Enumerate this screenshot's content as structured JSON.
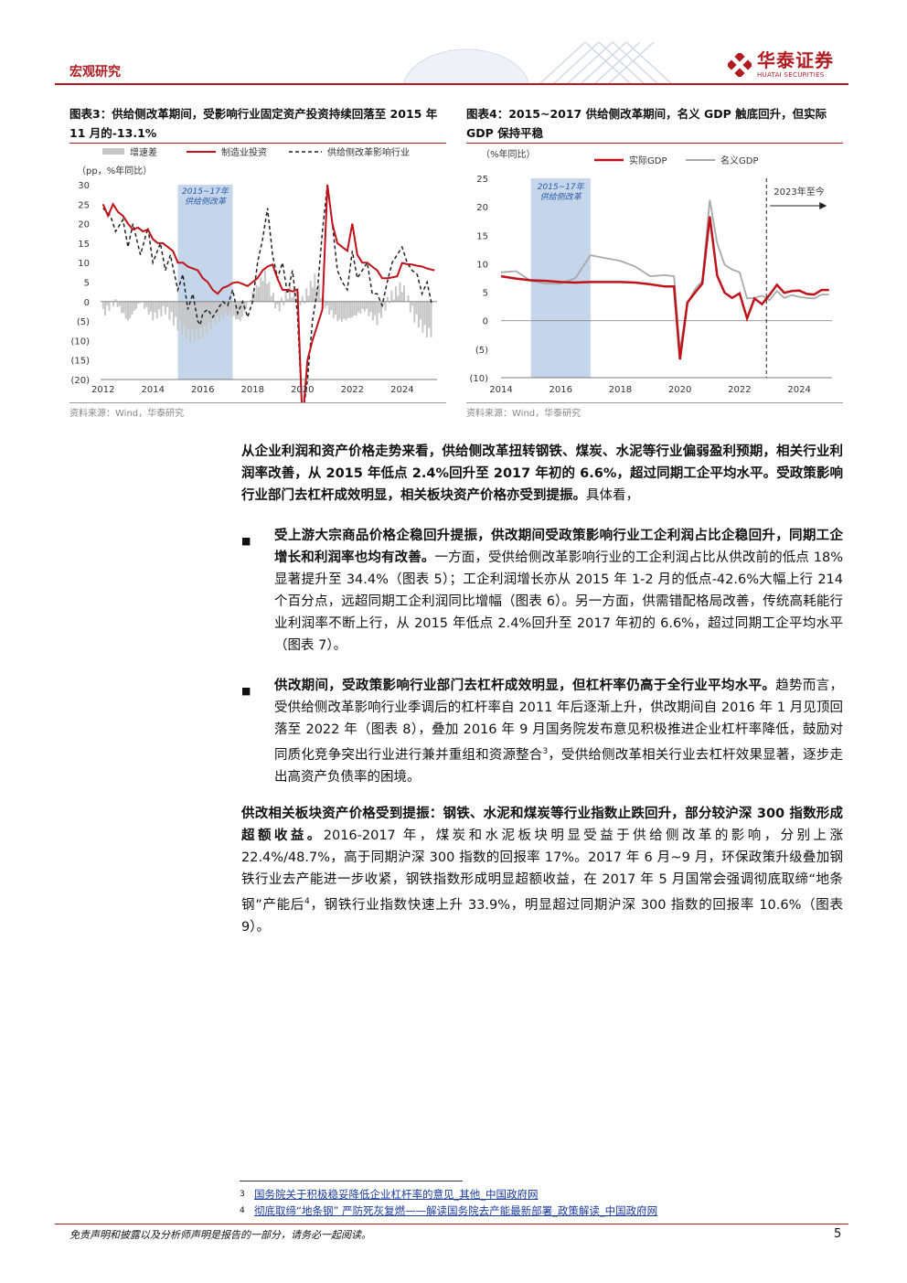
{
  "header": {
    "section": "宏观研究",
    "brand_cn": "华泰证券",
    "brand_en": "HUATAI SECURITIES"
  },
  "fig3": {
    "title": "图表3：供给侧改革期间，受影响行业固定资产投资持续回落至 2015 年 11 月的-13.1%",
    "source": "资料来源：Wind，华泰研究",
    "chart_data": {
      "type": "line",
      "unit": "（pp，%年同比）",
      "legend": [
        "增速差",
        "制造业投资",
        "供给侧改革影响行业"
      ],
      "band_label": [
        "2015~17年",
        "供给侧改革"
      ],
      "ylim": [
        -20,
        30
      ],
      "yticks": [
        "30",
        "25",
        "20",
        "15",
        "10",
        "5",
        "0",
        "(5)",
        "(10)",
        "(15)",
        "(20)"
      ],
      "xticks": [
        "2012",
        "2014",
        "2016",
        "2018",
        "2020",
        "2022",
        "2024"
      ],
      "band": [
        2015.0,
        2017.2
      ],
      "manufacturing": [
        [
          2012.0,
          25
        ],
        [
          2012.2,
          22
        ],
        [
          2012.4,
          25
        ],
        [
          2012.6,
          23
        ],
        [
          2012.8,
          22
        ],
        [
          2013.0,
          20
        ],
        [
          2013.2,
          18.5
        ],
        [
          2013.4,
          19
        ],
        [
          2013.6,
          18
        ],
        [
          2013.8,
          18.5
        ],
        [
          2014.0,
          16
        ],
        [
          2014.2,
          15
        ],
        [
          2014.4,
          15
        ],
        [
          2014.6,
          14
        ],
        [
          2014.8,
          13
        ],
        [
          2015.0,
          10
        ],
        [
          2015.2,
          10
        ],
        [
          2015.4,
          9
        ],
        [
          2015.6,
          8.5
        ],
        [
          2015.8,
          8
        ],
        [
          2016.0,
          6
        ],
        [
          2016.2,
          5
        ],
        [
          2016.4,
          3
        ],
        [
          2016.6,
          2
        ],
        [
          2016.8,
          3.5
        ],
        [
          2017.0,
          4
        ],
        [
          2017.2,
          4.8
        ],
        [
          2017.4,
          5
        ],
        [
          2017.6,
          4.5
        ],
        [
          2017.8,
          4
        ],
        [
          2018.0,
          5
        ],
        [
          2018.2,
          6
        ],
        [
          2018.4,
          8
        ],
        [
          2018.6,
          9
        ],
        [
          2018.8,
          9.5
        ],
        [
          2019.0,
          5.9
        ],
        [
          2019.2,
          3
        ],
        [
          2019.4,
          3
        ],
        [
          2019.6,
          2.6
        ],
        [
          2019.8,
          3.1
        ],
        [
          2020.0,
          -31
        ],
        [
          2020.2,
          -15
        ],
        [
          2020.4,
          -10
        ],
        [
          2020.6,
          -6
        ],
        [
          2020.8,
          -2
        ],
        [
          2021.0,
          30
        ],
        [
          2021.2,
          20
        ],
        [
          2021.4,
          15
        ],
        [
          2021.6,
          14
        ],
        [
          2021.8,
          13
        ],
        [
          2022.0,
          20
        ],
        [
          2022.2,
          12
        ],
        [
          2022.4,
          10
        ],
        [
          2022.6,
          10
        ],
        [
          2022.8,
          9
        ],
        [
          2023.0,
          8
        ],
        [
          2023.2,
          6
        ],
        [
          2023.4,
          6
        ],
        [
          2023.6,
          6.2
        ],
        [
          2023.8,
          6.5
        ],
        [
          2024.0,
          9.9
        ],
        [
          2024.2,
          9.6
        ],
        [
          2024.4,
          9.5
        ],
        [
          2024.6,
          9.2
        ],
        [
          2024.8,
          9
        ],
        [
          2025.0,
          8.5
        ],
        [
          2025.3,
          8
        ]
      ],
      "supply_side": [
        [
          2012.0,
          24
        ],
        [
          2012.3,
          22
        ],
        [
          2012.5,
          18
        ],
        [
          2012.8,
          21
        ],
        [
          2013.0,
          14
        ],
        [
          2013.2,
          20
        ],
        [
          2013.5,
          12
        ],
        [
          2013.8,
          19
        ],
        [
          2014.0,
          10
        ],
        [
          2014.3,
          15
        ],
        [
          2014.5,
          8
        ],
        [
          2014.7,
          12
        ],
        [
          2015.0,
          3
        ],
        [
          2015.2,
          7
        ],
        [
          2015.4,
          -2
        ],
        [
          2015.6,
          2
        ],
        [
          2015.8,
          -5
        ],
        [
          2015.9,
          -6
        ],
        [
          2016.0,
          -3
        ],
        [
          2016.2,
          -2
        ],
        [
          2016.4,
          -4
        ],
        [
          2016.6,
          -2
        ],
        [
          2016.8,
          0
        ],
        [
          2017.0,
          -1
        ],
        [
          2017.2,
          3
        ],
        [
          2017.4,
          -3
        ],
        [
          2017.6,
          0
        ],
        [
          2017.8,
          -4
        ],
        [
          2018.0,
          0
        ],
        [
          2018.2,
          10
        ],
        [
          2018.4,
          16
        ],
        [
          2018.6,
          24
        ],
        [
          2018.8,
          12
        ],
        [
          2019.0,
          6
        ],
        [
          2019.2,
          10
        ],
        [
          2019.4,
          2
        ],
        [
          2019.6,
          8
        ],
        [
          2019.8,
          -3
        ],
        [
          2020.0,
          -30
        ],
        [
          2020.2,
          -20
        ],
        [
          2020.4,
          -5
        ],
        [
          2020.6,
          3
        ],
        [
          2020.8,
          18
        ],
        [
          2021.0,
          30
        ],
        [
          2021.2,
          20
        ],
        [
          2021.4,
          8
        ],
        [
          2021.6,
          5
        ],
        [
          2021.8,
          3
        ],
        [
          2022.0,
          13
        ],
        [
          2022.2,
          6
        ],
        [
          2022.4,
          8
        ],
        [
          2022.6,
          10
        ],
        [
          2022.8,
          2
        ],
        [
          2023.0,
          2
        ],
        [
          2023.2,
          -1
        ],
        [
          2023.4,
          5
        ],
        [
          2023.6,
          10
        ],
        [
          2023.8,
          12
        ],
        [
          2024.0,
          14
        ],
        [
          2024.2,
          10
        ],
        [
          2024.4,
          8
        ],
        [
          2024.6,
          7
        ],
        [
          2024.8,
          2
        ],
        [
          2025.0,
          5
        ],
        [
          2025.2,
          -1
        ]
      ],
      "gap": [
        [
          2012.0,
          -3
        ],
        [
          2012.5,
          0
        ],
        [
          2013.0,
          -5
        ],
        [
          2013.5,
          0
        ],
        [
          2014.0,
          -4
        ],
        [
          2014.5,
          -2
        ],
        [
          2015.0,
          -6
        ],
        [
          2015.5,
          -9
        ],
        [
          2016.0,
          -8
        ],
        [
          2016.5,
          -5
        ],
        [
          2017.0,
          -3
        ],
        [
          2017.5,
          -5
        ],
        [
          2018.0,
          2
        ],
        [
          2018.5,
          7
        ],
        [
          2019.0,
          -2
        ],
        [
          2019.5,
          3
        ],
        [
          2020.0,
          0
        ],
        [
          2020.5,
          6
        ],
        [
          2021.0,
          -2
        ],
        [
          2021.5,
          -5
        ],
        [
          2022.0,
          -4
        ],
        [
          2022.5,
          -2
        ],
        [
          2023.0,
          -5
        ],
        [
          2023.5,
          1
        ],
        [
          2024.0,
          4
        ],
        [
          2024.5,
          -4
        ],
        [
          2025.0,
          -8
        ]
      ]
    }
  },
  "fig4": {
    "title": "图表4：2015~2017 供给侧改革期间，名义 GDP 触底回升，但实际 GDP 保持平稳",
    "source": "资料来源：Wind，华泰研究",
    "chart_data": {
      "type": "line",
      "unit": "（%年同比）",
      "legend": [
        "实际GDP",
        "名义GDP"
      ],
      "band_label": [
        "2015~17年",
        "供给侧改革"
      ],
      "annotation": "2023年至今",
      "ylim": [
        -10,
        25
      ],
      "yticks": [
        "25",
        "20",
        "15",
        "10",
        "5",
        "0",
        "(5)",
        "(10)"
      ],
      "xticks": [
        "2014",
        "2016",
        "2018",
        "2020",
        "2022",
        "2024"
      ],
      "band": [
        2015.0,
        2017.0
      ],
      "annotation_x": 2022.9,
      "real_gdp": [
        [
          2014.0,
          7.8
        ],
        [
          2014.5,
          7.4
        ],
        [
          2015.0,
          7.1
        ],
        [
          2015.5,
          7.0
        ],
        [
          2016.0,
          6.8
        ],
        [
          2016.5,
          6.7
        ],
        [
          2017.0,
          6.8
        ],
        [
          2017.5,
          6.8
        ],
        [
          2018.0,
          6.8
        ],
        [
          2018.5,
          6.7
        ],
        [
          2019.0,
          6.4
        ],
        [
          2019.5,
          6.0
        ],
        [
          2019.8,
          6.0
        ],
        [
          2020.0,
          -6.8
        ],
        [
          2020.25,
          3.2
        ],
        [
          2020.5,
          4.9
        ],
        [
          2020.75,
          6.5
        ],
        [
          2021.0,
          18.3
        ],
        [
          2021.25,
          7.9
        ],
        [
          2021.5,
          4.9
        ],
        [
          2021.75,
          4.0
        ],
        [
          2022.0,
          4.8
        ],
        [
          2022.25,
          0.4
        ],
        [
          2022.5,
          3.9
        ],
        [
          2022.75,
          2.9
        ],
        [
          2023.0,
          4.5
        ],
        [
          2023.25,
          6.3
        ],
        [
          2023.5,
          4.9
        ],
        [
          2023.75,
          5.2
        ],
        [
          2024.0,
          5.3
        ],
        [
          2024.25,
          4.7
        ],
        [
          2024.5,
          4.6
        ],
        [
          2024.75,
          5.4
        ],
        [
          2025.0,
          5.4
        ]
      ],
      "nominal_gdp": [
        [
          2014.0,
          8.5
        ],
        [
          2014.5,
          8.7
        ],
        [
          2015.0,
          7.0
        ],
        [
          2015.5,
          6.5
        ],
        [
          2016.0,
          6.5
        ],
        [
          2016.5,
          7.5
        ],
        [
          2017.0,
          11.5
        ],
        [
          2017.5,
          11.0
        ],
        [
          2018.0,
          10.5
        ],
        [
          2018.5,
          9.5
        ],
        [
          2019.0,
          7.8
        ],
        [
          2019.5,
          8.0
        ],
        [
          2019.8,
          7.8
        ],
        [
          2020.0,
          -5.3
        ],
        [
          2020.25,
          3.0
        ],
        [
          2020.5,
          5.5
        ],
        [
          2020.75,
          7.0
        ],
        [
          2021.0,
          21.2
        ],
        [
          2021.25,
          13.6
        ],
        [
          2021.5,
          9.8
        ],
        [
          2021.75,
          9.0
        ],
        [
          2022.0,
          8.5
        ],
        [
          2022.25,
          3.9
        ],
        [
          2022.5,
          4.0
        ],
        [
          2022.75,
          4.4
        ],
        [
          2023.0,
          3.6
        ],
        [
          2023.25,
          5.2
        ],
        [
          2023.5,
          4.0
        ],
        [
          2023.75,
          4.5
        ],
        [
          2024.0,
          4.2
        ],
        [
          2024.25,
          4.0
        ],
        [
          2024.5,
          3.9
        ],
        [
          2024.75,
          4.6
        ],
        [
          2025.0,
          4.6
        ]
      ]
    }
  },
  "intro": {
    "bold": "从企业利润和资产价格走势来看，供给侧改革扭转钢铁、煤炭、水泥等行业偏弱盈利预期，相关行业利润率改善，从 2015 年低点 2.4%回升至 2017 年初的 6.6%，超过同期工企平均水平。受政策影响行业部门去杠杆成效明显，相关板块资产价格亦受到提振。",
    "normal": "具体看，"
  },
  "bullets": [
    {
      "bold": "受上游大宗商品价格企稳回升提振，供改期间受政策影响行业工企利润占比企稳回升，同期工企增长和利润率也均有改善。",
      "normal": "一方面，受供给侧改革影响行业的工企利润占比从供改前的低点 18%显著提升至 34.4%（图表 5）；工企利润增长亦从 2015 年 1-2 月的低点-42.6%大幅上行 214 个百分点，远超同期工企利润同比增幅（图表 6）。另一方面，供需错配格局改善，传统高耗能行业利润率不断上行，从 2015 年低点 2.4%回升至 2017 年初的 6.6%，超过同期工企平均水平（图表 7）。"
    },
    {
      "bold": "供改期间，受政策影响行业部门去杠杆成效明显，但杠杆率仍高于全行业平均水平。",
      "normal": "趋势而言，受供给侧改革影响行业季调后的杠杆率自 2011 年后逐渐上升，供改期间自 2016 年 1 月见顶回落至 2022 年（图表 8），叠加 2016 年 9 月国务院发布意见积极推进企业杠杆率降低，鼓励对同质化竞争突出行业进行兼并重组和资源整合",
      "sup": "3",
      "tail": "，受供给侧改革相关行业去杠杆效果显著，逐步走出高资产负债率的困境。"
    }
  ],
  "para3": {
    "bold": "供改相关板块资产价格受到提振：钢铁、水泥和煤炭等行业指数止跌回升，部分较沪深 300 指数形成超额收益。",
    "normal": "2016-2017 年，煤炭和水泥板块明显受益于供给侧改革的影响，分别上涨 22.4%/48.7%，高于同期沪深 300 指数的回报率 17%。2017 年 6 月~9 月，环保政策升级叠加钢铁行业去产能进一步收紧，钢铁指数形成明显超额收益，在 2017 年 5 月国常会强调彻底取缔“地条钢”产能后",
    "sup": "4",
    "tail": "，钢铁行业指数快速上升 33.9%，明显超过同期沪深 300 指数的回报率 10.6%（图表 9）。"
  },
  "footnotes": [
    {
      "num": "3",
      "text": "国务院关于积极稳妥降低企业杠杆率的意见_其他_中国政府网"
    },
    {
      "num": "4",
      "text": "彻底取缔“地条钢” 严防死灰复燃——解读国务院去产能最新部署_政策解读_中国政府网"
    }
  ],
  "footer": {
    "disclaimer": "免责声明和披露以及分析师声明是报告的一部分，请务必一起阅读。",
    "page": "5"
  },
  "colors": {
    "brand_red": "#b01b22",
    "line_red": "#c0121a",
    "band_blue": "#c5d6ea",
    "gray_bar": "#c6c6c6",
    "nominal_gray": "#a9a9a9"
  }
}
